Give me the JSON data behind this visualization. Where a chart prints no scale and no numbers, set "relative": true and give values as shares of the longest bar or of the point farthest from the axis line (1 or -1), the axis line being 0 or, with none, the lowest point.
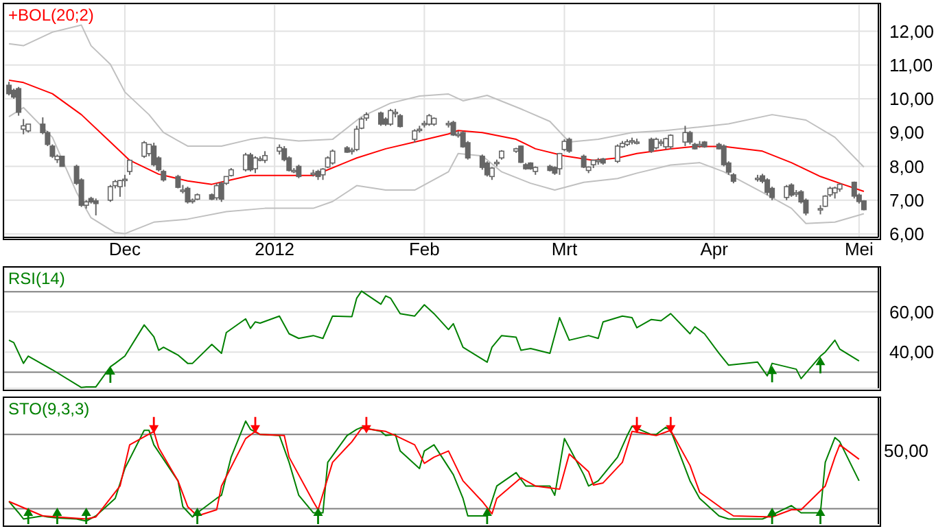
{
  "chart_data": [
    {
      "type": "candlestick",
      "title": "+BOL(20;2)",
      "x": [
        "2011-11-07",
        "2011-11-08",
        "2011-11-09",
        "2011-11-10",
        "2011-11-11",
        "2011-11-14",
        "2011-11-15",
        "2011-11-16",
        "2011-11-17",
        "2011-11-18",
        "2011-11-21",
        "2011-11-22",
        "2011-11-23",
        "2011-11-24",
        "2011-11-25",
        "2011-11-28",
        "2011-11-29",
        "2011-11-30",
        "2011-12-01",
        "2011-12-02",
        "2011-12-05",
        "2011-12-06",
        "2011-12-07",
        "2011-12-08",
        "2011-12-09",
        "2011-12-12",
        "2011-12-13",
        "2011-12-14",
        "2011-12-15",
        "2011-12-16",
        "2011-12-19",
        "2011-12-20",
        "2011-12-21",
        "2011-12-22",
        "2011-12-23",
        "2011-12-26",
        "2011-12-27",
        "2011-12-28",
        "2011-12-29",
        "2011-12-30",
        "2012-01-02",
        "2012-01-03",
        "2012-01-04",
        "2012-01-05",
        "2012-01-06",
        "2012-01-09",
        "2012-01-10",
        "2012-01-11",
        "2012-01-12",
        "2012-01-13",
        "2012-01-16",
        "2012-01-17",
        "2012-01-18",
        "2012-01-19",
        "2012-01-20",
        "2012-01-23",
        "2012-01-24",
        "2012-01-25",
        "2012-01-26",
        "2012-01-27",
        "2012-01-30",
        "2012-01-31",
        "2012-02-01",
        "2012-02-02",
        "2012-02-03",
        "2012-02-06",
        "2012-02-07",
        "2012-02-08",
        "2012-02-09",
        "2012-02-10",
        "2012-02-13",
        "2012-02-14",
        "2012-02-15",
        "2012-02-16",
        "2012-02-17",
        "2012-02-20",
        "2012-02-21",
        "2012-02-22",
        "2012-02-23",
        "2012-02-24",
        "2012-02-27",
        "2012-02-28",
        "2012-02-29",
        "2012-03-01",
        "2012-03-02",
        "2012-03-05",
        "2012-03-06",
        "2012-03-07",
        "2012-03-08",
        "2012-03-09",
        "2012-03-12",
        "2012-03-13",
        "2012-03-14",
        "2012-03-15",
        "2012-03-16",
        "2012-03-19",
        "2012-03-20",
        "2012-03-21",
        "2012-03-22",
        "2012-03-23",
        "2012-03-26",
        "2012-03-27",
        "2012-03-28",
        "2012-03-29",
        "2012-03-30",
        "2012-04-02",
        "2012-04-03",
        "2012-04-04",
        "2012-04-05",
        "2012-04-10",
        "2012-04-11",
        "2012-04-12",
        "2012-04-13",
        "2012-04-16",
        "2012-04-17",
        "2012-04-18",
        "2012-04-19",
        "2012-04-20",
        "2012-04-23",
        "2012-04-24",
        "2012-04-25",
        "2012-04-26",
        "2012-04-27",
        "2012-04-30",
        "2012-05-01",
        "2012-05-02"
      ],
      "ohlc": [
        [
          10.4,
          10.5,
          10.1,
          10.15
        ],
        [
          10.25,
          10.3,
          10.0,
          10.05
        ],
        [
          10.3,
          10.35,
          9.5,
          9.6
        ],
        [
          9.1,
          9.4,
          8.95,
          9.2
        ],
        [
          9.05,
          9.25,
          9.0,
          9.25
        ],
        [
          9.25,
          9.45,
          8.95,
          9.0
        ],
        [
          9.0,
          9.05,
          8.6,
          8.65
        ],
        [
          8.6,
          8.65,
          8.25,
          8.3
        ],
        [
          8.2,
          8.35,
          8.1,
          8.3
        ],
        [
          8.3,
          8.3,
          8.0,
          8.0
        ],
        [
          8.0,
          8.05,
          7.45,
          7.5
        ],
        [
          7.6,
          7.65,
          6.8,
          6.85
        ],
        [
          6.85,
          7.0,
          6.75,
          6.95
        ],
        [
          7.05,
          7.1,
          6.9,
          6.95
        ],
        [
          6.98,
          7.05,
          6.55,
          6.9
        ],
        [
          7.0,
          7.45,
          6.95,
          7.4
        ],
        [
          7.43,
          7.6,
          7.35,
          7.55
        ],
        [
          7.4,
          7.6,
          7.1,
          7.58
        ],
        [
          7.6,
          7.75,
          7.4,
          7.62
        ],
        [
          7.85,
          8.2,
          7.75,
          8.18
        ],
        [
          8.3,
          8.75,
          8.25,
          8.7
        ],
        [
          8.38,
          8.65,
          8.3,
          8.65
        ],
        [
          8.6,
          8.7,
          8.0,
          8.05
        ],
        [
          8.25,
          8.3,
          7.85,
          7.9
        ],
        [
          7.85,
          7.9,
          7.55,
          7.6
        ],
        [
          7.7,
          7.75,
          7.35,
          7.38
        ],
        [
          7.3,
          7.45,
          7.2,
          7.3
        ],
        [
          7.35,
          7.4,
          6.9,
          6.95
        ],
        [
          6.98,
          7.05,
          6.9,
          7.0
        ],
        [
          7.03,
          7.2,
          7.0,
          7.16
        ],
        [
          7.16,
          7.2,
          7.0,
          7.03
        ],
        [
          7.07,
          7.5,
          7.0,
          7.43
        ],
        [
          7.5,
          7.55,
          6.95,
          7.03
        ],
        [
          7.5,
          7.7,
          7.45,
          7.7
        ],
        [
          7.73,
          7.95,
          7.7,
          7.9
        ],
        [
          7.9,
          8.4,
          7.85,
          8.34
        ],
        [
          8.34,
          8.4,
          7.85,
          7.9
        ],
        [
          7.93,
          8.3,
          7.8,
          8.25
        ],
        [
          8.2,
          8.3,
          8.15,
          8.22
        ],
        [
          8.18,
          8.45,
          8.1,
          8.32
        ],
        [
          8.45,
          8.65,
          8.35,
          8.56
        ],
        [
          8.52,
          8.6,
          8.15,
          8.2
        ],
        [
          8.25,
          8.3,
          7.85,
          7.88
        ],
        [
          7.88,
          7.95,
          7.8,
          7.88
        ],
        [
          8.0,
          8.05,
          7.65,
          7.7
        ],
        [
          7.8,
          7.9,
          7.7,
          7.8
        ],
        [
          7.85,
          7.9,
          7.6,
          7.7
        ],
        [
          7.75,
          7.95,
          7.6,
          7.92
        ],
        [
          7.98,
          8.3,
          7.95,
          8.25
        ],
        [
          8.1,
          8.5,
          8.05,
          8.45
        ],
        [
          8.55,
          8.6,
          8.4,
          8.42
        ],
        [
          8.48,
          8.55,
          8.35,
          8.48
        ],
        [
          8.5,
          9.2,
          8.45,
          9.1
        ],
        [
          9.13,
          9.45,
          9.1,
          9.4
        ],
        [
          9.43,
          9.6,
          9.35,
          9.53
        ],
        [
          9.58,
          9.62,
          9.2,
          9.25
        ],
        [
          9.4,
          9.45,
          9.2,
          9.25
        ],
        [
          9.25,
          9.7,
          9.2,
          9.65
        ],
        [
          9.6,
          9.7,
          9.45,
          9.6
        ],
        [
          9.5,
          9.55,
          9.15,
          9.18
        ],
        [
          8.8,
          9.1,
          8.7,
          9.05
        ],
        [
          9.1,
          9.2,
          9.0,
          9.1
        ],
        [
          9.27,
          9.35,
          9.15,
          9.27
        ],
        [
          9.25,
          9.55,
          9.2,
          9.5
        ],
        [
          9.25,
          9.45,
          9.2,
          9.42
        ],
        [
          9.27,
          9.35,
          9.15,
          9.27
        ],
        [
          9.3,
          9.35,
          8.9,
          8.93
        ],
        [
          8.95,
          9.05,
          8.85,
          8.95
        ],
        [
          9.0,
          9.05,
          8.55,
          8.58
        ],
        [
          8.7,
          8.75,
          8.2,
          8.25
        ],
        [
          8.3,
          8.35,
          7.9,
          7.97
        ],
        [
          8.1,
          8.15,
          7.7,
          7.75
        ],
        [
          7.7,
          7.98,
          7.6,
          7.95
        ],
        [
          8.1,
          8.2,
          8.0,
          8.12
        ],
        [
          8.25,
          8.48,
          8.2,
          8.45
        ],
        [
          8.45,
          8.55,
          8.4,
          8.52
        ],
        [
          8.6,
          8.62,
          8.1,
          8.12
        ],
        [
          8.05,
          8.1,
          7.9,
          7.93
        ],
        [
          8.1,
          8.12,
          7.9,
          7.93
        ],
        [
          7.85,
          8.0,
          7.75,
          7.97
        ],
        [
          8.0,
          8.05,
          7.85,
          7.88
        ],
        [
          7.97,
          8.0,
          7.75,
          7.8
        ],
        [
          7.93,
          8.4,
          7.75,
          8.38
        ],
        [
          8.5,
          8.8,
          8.45,
          8.74
        ],
        [
          8.8,
          8.85,
          8.4,
          8.45
        ],
        [
          8.3,
          8.35,
          7.95,
          7.98
        ],
        [
          7.88,
          8.0,
          7.8,
          7.98
        ],
        [
          8.05,
          8.2,
          7.95,
          8.18
        ],
        [
          8.17,
          8.25,
          8.05,
          8.18
        ],
        [
          8.22,
          8.25,
          8.05,
          8.1
        ],
        [
          8.15,
          8.65,
          8.1,
          8.6
        ],
        [
          8.58,
          8.75,
          8.55,
          8.68
        ],
        [
          8.65,
          8.8,
          8.6,
          8.73
        ],
        [
          8.75,
          8.85,
          8.65,
          8.76
        ],
        [
          8.72,
          8.82,
          8.65,
          8.72
        ],
        [
          8.8,
          8.85,
          8.4,
          8.45
        ],
        [
          8.55,
          8.85,
          8.5,
          8.8
        ],
        [
          8.72,
          8.8,
          8.6,
          8.72
        ],
        [
          8.58,
          8.85,
          8.5,
          8.82
        ],
        [
          8.58,
          8.95,
          8.5,
          8.92
        ],
        [
          8.72,
          9.2,
          8.6,
          9.0
        ],
        [
          9.0,
          9.05,
          8.65,
          8.72
        ],
        [
          8.65,
          8.7,
          8.5,
          8.52
        ],
        [
          8.65,
          8.75,
          8.55,
          8.65
        ],
        [
          8.72,
          8.75,
          8.55,
          8.58
        ],
        [
          8.65,
          8.7,
          8.5,
          8.52
        ],
        [
          8.6,
          8.65,
          8.0,
          8.05
        ],
        [
          8.1,
          8.15,
          7.75,
          7.83
        ],
        [
          7.75,
          7.8,
          7.5,
          7.56
        ],
        [
          7.65,
          7.75,
          7.55,
          7.65
        ],
        [
          7.72,
          7.78,
          7.5,
          7.56
        ],
        [
          7.6,
          7.65,
          7.15,
          7.23
        ],
        [
          7.35,
          7.4,
          7.0,
          7.08
        ],
        [
          7.08,
          7.45,
          7.0,
          7.4
        ],
        [
          7.45,
          7.5,
          7.1,
          7.15
        ],
        [
          7.2,
          7.3,
          7.1,
          7.22
        ],
        [
          7.25,
          7.3,
          6.9,
          6.95
        ],
        [
          7.0,
          7.05,
          6.55,
          6.62
        ],
        [
          6.75,
          6.85,
          6.58,
          6.75
        ],
        [
          6.82,
          7.15,
          6.8,
          7.12
        ],
        [
          7.16,
          7.4,
          7.1,
          7.35
        ],
        [
          7.22,
          7.4,
          7.05,
          7.36
        ],
        [
          7.33,
          7.5,
          7.25,
          7.47
        ],
        [
          7.53,
          7.55,
          7.05,
          7.12
        ],
        [
          7.15,
          7.2,
          6.9,
          6.96
        ],
        [
          6.98,
          7.0,
          6.7,
          6.72
        ]
      ],
      "series": [
        {
          "type": "line",
          "color": "#ff0000",
          "x": [
            "2011-11-07",
            "2011-11-10",
            "2011-11-16",
            "2011-11-22",
            "2011-11-28",
            "2011-12-02",
            "2011-12-08",
            "2011-12-14",
            "2011-12-19",
            "2011-12-22",
            "2011-12-27",
            "2012-01-03",
            "2012-01-09",
            "2012-01-12",
            "2012-01-18",
            "2012-01-24",
            "2012-01-30",
            "2012-02-06",
            "2012-02-08",
            "2012-02-13",
            "2012-02-20",
            "2012-02-24",
            "2012-03-01",
            "2012-03-07",
            "2012-03-12",
            "2012-03-16",
            "2012-03-23",
            "2012-03-28",
            "2012-04-03",
            "2012-04-11",
            "2012-04-17",
            "2012-04-23",
            "2012-04-27",
            "2012-05-02"
          ],
          "values": [
            10.55,
            10.48,
            10.15,
            9.53,
            8.72,
            8.18,
            7.77,
            7.57,
            7.47,
            7.57,
            7.73,
            7.73,
            7.73,
            7.9,
            8.25,
            8.52,
            8.72,
            8.96,
            9.06,
            9.0,
            8.8,
            8.52,
            8.31,
            8.18,
            8.25,
            8.38,
            8.52,
            8.59,
            8.59,
            8.45,
            8.11,
            7.7,
            7.5,
            7.26
          ]
        },
        {
          "type": "line",
          "color": "#c0c0c0",
          "x": [
            "2011-11-07",
            "2011-11-10",
            "2011-11-16",
            "2011-11-22",
            "2011-11-24",
            "2011-11-28",
            "2011-12-01",
            "2011-12-06",
            "2011-12-09",
            "2011-12-14",
            "2011-12-21",
            "2011-12-27",
            "2011-12-30",
            "2012-01-06",
            "2012-01-13",
            "2012-01-19",
            "2012-01-25",
            "2012-01-31",
            "2012-02-06",
            "2012-02-09",
            "2012-02-14",
            "2012-02-21",
            "2012-02-27",
            "2012-03-02",
            "2012-03-08",
            "2012-03-15",
            "2012-03-22",
            "2012-03-28",
            "2012-04-04",
            "2012-04-13",
            "2012-04-20",
            "2012-04-26",
            "2012-05-02"
          ],
          "values": [
            11.63,
            11.57,
            11.97,
            12.18,
            11.57,
            11.02,
            10.2,
            9.53,
            9.0,
            8.6,
            8.6,
            8.8,
            8.86,
            8.75,
            8.8,
            9.47,
            9.87,
            10.08,
            10.14,
            9.94,
            10.1,
            9.7,
            9.33,
            8.72,
            8.8,
            9.0,
            9.06,
            9.15,
            9.26,
            9.53,
            9.37,
            8.86,
            7.98
          ]
        },
        {
          "type": "line",
          "color": "#c0c0c0",
          "x": [
            "2011-11-07",
            "2011-11-10",
            "2011-11-16",
            "2011-11-21",
            "2011-11-24",
            "2011-11-29",
            "2011-12-01",
            "2011-12-07",
            "2011-12-14",
            "2011-12-22",
            "2011-12-30",
            "2012-01-09",
            "2012-01-13",
            "2012-01-18",
            "2012-01-24",
            "2012-01-30",
            "2012-02-06",
            "2012-02-08",
            "2012-02-13",
            "2012-02-17",
            "2012-02-23",
            "2012-02-28",
            "2012-03-05",
            "2012-03-12",
            "2012-03-16",
            "2012-03-23",
            "2012-03-29",
            "2012-04-03",
            "2012-04-11",
            "2012-04-17",
            "2012-04-20",
            "2012-04-26",
            "2012-05-02"
          ],
          "values": [
            9.47,
            9.74,
            8.86,
            7.23,
            6.48,
            6.04,
            6.01,
            6.35,
            6.44,
            6.66,
            6.76,
            6.76,
            6.96,
            7.43,
            7.3,
            7.3,
            7.84,
            8.38,
            8.31,
            7.84,
            7.5,
            7.3,
            7.53,
            7.64,
            7.8,
            8.04,
            8.11,
            7.84,
            7.23,
            6.76,
            6.31,
            6.35,
            6.6
          ]
        }
      ],
      "xlim": [
        "2011-11-06",
        "2012-05-05"
      ],
      "xticks": [
        {
          "value": "2011-12-01",
          "label": "Dec"
        },
        {
          "value": "2012-01-01",
          "label": "2012"
        },
        {
          "value": "2012-02-01",
          "label": "Feb"
        },
        {
          "value": "2012-03-01",
          "label": "Mrt"
        },
        {
          "value": "2012-04-01",
          "label": "Apr"
        },
        {
          "value": "2012-05-01",
          "label": "Mei"
        }
      ],
      "ylim": [
        5.9,
        12.8
      ],
      "yticks": [
        {
          "value": 6,
          "label": "6,00"
        },
        {
          "value": 7,
          "label": "7,00"
        },
        {
          "value": 8,
          "label": "8,00"
        },
        {
          "value": 9,
          "label": "9,00"
        },
        {
          "value": 10,
          "label": "10,00"
        },
        {
          "value": 11,
          "label": "11,00"
        },
        {
          "value": 12,
          "label": "12,00"
        }
      ],
      "grid": true
    },
    {
      "type": "line",
      "title": "RSI(14)",
      "series": [
        {
          "color": "#008000",
          "x": [
            "2011-11-07",
            "2011-11-08",
            "2011-11-10",
            "2011-11-11",
            "2011-11-16",
            "2011-11-22",
            "2011-11-23",
            "2011-11-25",
            "2011-11-28",
            "2011-11-29",
            "2011-12-01",
            "2011-12-05",
            "2011-12-07",
            "2011-12-08",
            "2011-12-09",
            "2011-12-12",
            "2011-12-14",
            "2011-12-15",
            "2011-12-19",
            "2011-12-21",
            "2011-12-22",
            "2011-12-26",
            "2011-12-27",
            "2011-12-28",
            "2011-12-29",
            "2012-01-02",
            "2012-01-04",
            "2012-01-06",
            "2012-01-09",
            "2012-01-11",
            "2012-01-13",
            "2012-01-17",
            "2012-01-18",
            "2012-01-19",
            "2012-01-23",
            "2012-01-24",
            "2012-01-25",
            "2012-01-27",
            "2012-01-30",
            "2012-02-01",
            "2012-02-03",
            "2012-02-06",
            "2012-02-07",
            "2012-02-09",
            "2012-02-14",
            "2012-02-15",
            "2012-02-17",
            "2012-02-20",
            "2012-02-21",
            "2012-02-23",
            "2012-02-27",
            "2012-02-29",
            "2012-03-02",
            "2012-03-06",
            "2012-03-08",
            "2012-03-09",
            "2012-03-13",
            "2012-03-15",
            "2012-03-16",
            "2012-03-19",
            "2012-03-21",
            "2012-03-23",
            "2012-03-27",
            "2012-03-28",
            "2012-03-30",
            "2012-04-02",
            "2012-04-04",
            "2012-04-10",
            "2012-04-12",
            "2012-04-13",
            "2012-04-18",
            "2012-04-19",
            "2012-04-23",
            "2012-04-24",
            "2012-04-26",
            "2012-04-27",
            "2012-05-01"
          ],
          "values": [
            45.9,
            44.7,
            34.4,
            38,
            31.2,
            22.4,
            22.7,
            22.7,
            32.7,
            34.4,
            38,
            53.5,
            47.6,
            40.9,
            42.4,
            38.5,
            34.4,
            34.4,
            43.8,
            39.4,
            49.7,
            56.5,
            51.8,
            55,
            54.4,
            57.9,
            49.1,
            46.8,
            48.2,
            46.8,
            57.9,
            57.6,
            66.8,
            70.3,
            63.8,
            67.9,
            66.8,
            59.1,
            57.9,
            63.5,
            59.1,
            51.2,
            54.1,
            42.4,
            35,
            42.4,
            48.2,
            47.4,
            40.9,
            41.8,
            39.4,
            57.1,
            45.9,
            48.2,
            46.8,
            55,
            57.9,
            57.1,
            52.1,
            56.2,
            55.6,
            59.1,
            49.1,
            52.6,
            49.1,
            39.4,
            33.5,
            35,
            28.2,
            34.4,
            31.5,
            26.8,
            38,
            40,
            45.9,
            41.5,
            35.6
          ]
        },
        {
          "type": "scatter",
          "marker": "triangle",
          "color": "#008000",
          "x": [
            "2011-11-28",
            "2012-04-13",
            "2012-04-23"
          ],
          "values": [
            28.8,
            29.1,
            33.5
          ]
        }
      ],
      "xlim": [
        "2011-11-06",
        "2012-05-05"
      ],
      "xticks": [
        {
          "value": "2011-12-01",
          "label": null
        },
        {
          "value": "2012-01-01",
          "label": null
        },
        {
          "value": "2012-02-01",
          "label": null
        },
        {
          "value": "2012-03-01",
          "label": null
        },
        {
          "value": "2012-04-01",
          "label": null
        },
        {
          "value": "2012-05-01",
          "label": null
        }
      ],
      "ylim": [
        22,
        82
      ],
      "yticks": [
        {
          "value": 40,
          "label": "40,00"
        },
        {
          "value": 60,
          "label": "60,00"
        }
      ],
      "ref_lines": [
        {
          "axis": "y",
          "value": 70
        },
        {
          "axis": "y",
          "value": 30
        }
      ],
      "grid": true,
      "tick_labels": "y"
    },
    {
      "type": "line",
      "title": "STO(9,3,3)",
      "relative": true,
      "annotations": [
        "50,00"
      ],
      "series": [
        {
          "color": "#008000",
          "x": [
            "2011-11-07",
            "2011-11-09",
            "2011-11-10",
            "2011-11-14",
            "2011-11-15",
            "2011-11-17",
            "2011-11-21",
            "2011-11-23",
            "2011-11-25",
            "2011-11-29",
            "2011-12-01",
            "2011-12-05",
            "2011-12-06",
            "2011-12-07",
            "2011-12-12",
            "2011-12-13",
            "2011-12-15",
            "2011-12-16",
            "2011-12-20",
            "2011-12-21",
            "2011-12-23",
            "2011-12-26",
            "2011-12-27",
            "2011-12-29",
            "2012-01-02",
            "2012-01-04",
            "2012-01-06",
            "2012-01-09",
            "2012-01-11",
            "2012-01-12",
            "2012-01-16",
            "2012-01-18",
            "2012-01-19",
            "2012-01-23",
            "2012-01-24",
            "2012-01-26",
            "2012-01-27",
            "2012-01-31",
            "2012-02-01",
            "2012-02-03",
            "2012-02-07",
            "2012-02-09",
            "2012-02-10",
            "2012-02-14",
            "2012-02-16",
            "2012-02-20",
            "2012-02-22",
            "2012-02-27",
            "2012-02-28",
            "2012-03-01",
            "2012-03-05",
            "2012-03-06",
            "2012-03-08",
            "2012-03-12",
            "2012-03-14",
            "2012-03-15",
            "2012-03-19",
            "2012-03-20",
            "2012-03-22",
            "2012-03-23",
            "2012-03-27",
            "2012-03-29",
            "2012-04-02",
            "2012-04-04",
            "2012-04-11",
            "2012-04-13",
            "2012-04-17",
            "2012-04-19",
            "2012-04-23",
            "2012-04-24",
            "2012-04-26",
            "2012-04-27",
            "2012-05-01"
          ],
          "values": [
            0.22,
            0.11,
            0.05,
            0.08,
            0.07,
            0.06,
            0.05,
            0.03,
            0.08,
            0.25,
            0.54,
            0.91,
            0.91,
            0.77,
            0.42,
            0.17,
            0.07,
            0.11,
            0.25,
            0.28,
            0.65,
            1,
            0.92,
            0.87,
            0.86,
            0.6,
            0.28,
            0.11,
            0.11,
            0.6,
            0.86,
            0.92,
            0.94,
            0.9,
            0.86,
            0.87,
            0.71,
            0.54,
            0.71,
            0.77,
            0.48,
            0.25,
            0.08,
            0.08,
            0.37,
            0.5,
            0.37,
            0.37,
            0.28,
            0.83,
            0.48,
            0.37,
            0.42,
            0.65,
            0.86,
            0.95,
            0.87,
            0.87,
            0.94,
            0.91,
            0.42,
            0.25,
            0.08,
            0.05,
            0.05,
            0.09,
            0.18,
            0.11,
            0.11,
            0.6,
            0.84,
            0.8,
            0.42
          ]
        },
        {
          "color": "#ff0000",
          "x": [
            "2011-11-07",
            "2011-11-09",
            "2011-11-14",
            "2011-11-17",
            "2011-11-23",
            "2011-11-25",
            "2011-11-30",
            "2011-12-02",
            "2011-12-07",
            "2011-12-08",
            "2011-12-12",
            "2011-12-14",
            "2011-12-16",
            "2011-12-20",
            "2011-12-21",
            "2011-12-26",
            "2011-12-28",
            "2011-12-29",
            "2012-01-03",
            "2012-01-04",
            "2012-01-09",
            "2012-01-10",
            "2012-01-13",
            "2012-01-17",
            "2012-01-19",
            "2012-01-24",
            "2012-01-26",
            "2012-01-30",
            "2012-02-01",
            "2012-02-03",
            "2012-02-06",
            "2012-02-09",
            "2012-02-13",
            "2012-02-15",
            "2012-02-16",
            "2012-02-21",
            "2012-02-24",
            "2012-02-29",
            "2012-03-02",
            "2012-03-06",
            "2012-03-07",
            "2012-03-09",
            "2012-03-13",
            "2012-03-15",
            "2012-03-20",
            "2012-03-23",
            "2012-03-27",
            "2012-03-29",
            "2012-04-03",
            "2012-04-05",
            "2012-04-13",
            "2012-04-17",
            "2012-04-19",
            "2012-04-24",
            "2012-04-26",
            "2012-04-27",
            "2012-05-01"
          ],
          "values": [
            0.22,
            0.18,
            0.08,
            0.07,
            0.05,
            0.07,
            0.37,
            0.77,
            0.9,
            0.74,
            0.42,
            0.17,
            0.08,
            0.14,
            0.37,
            0.83,
            0.9,
            0.87,
            0.86,
            0.65,
            0.22,
            0.14,
            0.6,
            0.8,
            0.93,
            0.9,
            0.86,
            0.77,
            0.59,
            0.65,
            0.71,
            0.42,
            0.22,
            0.1,
            0.25,
            0.45,
            0.37,
            0.34,
            0.68,
            0.51,
            0.38,
            0.4,
            0.6,
            0.9,
            0.86,
            0.91,
            0.57,
            0.31,
            0.14,
            0.08,
            0.07,
            0.14,
            0.14,
            0.37,
            0.65,
            0.77,
            0.63
          ]
        },
        {
          "type": "scatter",
          "marker": "triangle",
          "color": "#008000",
          "x": [
            "2011-11-11",
            "2011-11-17",
            "2011-11-23",
            "2011-12-16",
            "2012-01-10",
            "2012-02-14",
            "2012-04-13",
            "2012-04-23"
          ],
          "values": [
            0.08,
            0.08,
            0.08,
            0.08,
            0.08,
            0.08,
            0.08,
            0.08
          ]
        },
        {
          "type": "scatter",
          "marker": "triangle",
          "color": "#ff0000",
          "x": [
            "2011-12-07",
            "2011-12-28",
            "2012-01-20",
            "2012-03-16",
            "2012-03-23"
          ],
          "values": [
            0.96,
            0.96,
            0.96,
            0.96,
            0.96
          ]
        }
      ],
      "xlim": [
        "2011-11-06",
        "2012-05-05"
      ],
      "xticks": [
        {
          "value": "2011-12-01",
          "label": null
        },
        {
          "value": "2012-01-01",
          "label": null
        },
        {
          "value": "2012-02-01",
          "label": null
        },
        {
          "value": "2012-03-01",
          "label": null
        },
        {
          "value": "2012-04-01",
          "label": null
        },
        {
          "value": "2012-05-01",
          "label": null
        }
      ],
      "ref_lines": [
        {
          "axis": "y",
          "value": 0.87
        },
        {
          "axis": "y",
          "value": 0.15
        }
      ],
      "grid": "x",
      "tick_labels": false
    }
  ]
}
